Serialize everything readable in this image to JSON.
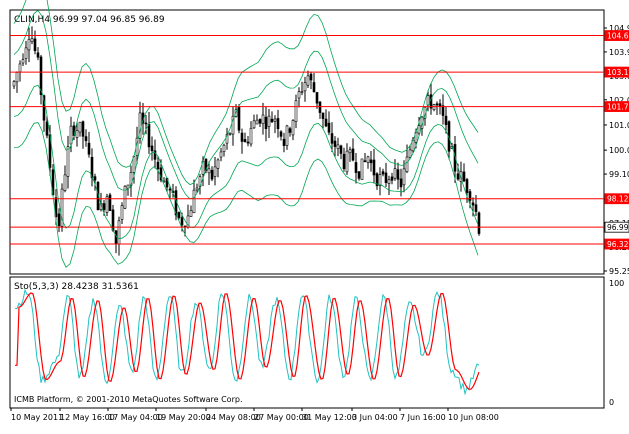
{
  "main_chart": {
    "header": "CLIN,H4  96.99 97.04 96.85 96.89",
    "price_axis_labels": [
      "104.90",
      "103.95",
      "103.00",
      "102.05",
      "101.05",
      "100.05",
      "99.10",
      "98.10",
      "97.15",
      "96.20",
      "95.25"
    ],
    "price_axis_values": [
      104.9,
      103.95,
      103.0,
      102.05,
      101.05,
      100.05,
      99.1,
      98.1,
      97.15,
      96.2,
      95.25
    ],
    "horizontal_levels": [
      {
        "label": "104.60",
        "value": 104.6
      },
      {
        "label": "103.15",
        "value": 103.15
      },
      {
        "label": "101.78",
        "value": 101.78
      },
      {
        "label": "98.12",
        "value": 98.12
      },
      {
        "label": "96.99",
        "value": 96.99,
        "current_price": true
      },
      {
        "label": "96.32",
        "value": 96.32
      }
    ],
    "colors": {
      "level_line": "#ff0000",
      "level_tag": "#ff0000",
      "current_price_tag": "#ffffff",
      "candles": "#000000",
      "bands": "#00a651"
    }
  },
  "stochastic": {
    "header": "Sto(5,3,3) 28.4238 31.5361",
    "scale_top": "100",
    "scale_bottom": "0",
    "colors": {
      "main": "#ff0000",
      "signal": "#22c0c0"
    }
  },
  "watermark": "ICMB Platform, © 2001-2010 MetaQuotes Software Corp.",
  "time_axis_labels": [
    "10 May 2011",
    "12 May 16:00",
    "17 May 04:00",
    "19 May 20:00",
    "24 May 08:00",
    "27 May 00:00",
    "31 May 12:00",
    "3 Jun 04:00",
    "7 Jun 16:00",
    "10 Jun 08:00"
  ]
}
